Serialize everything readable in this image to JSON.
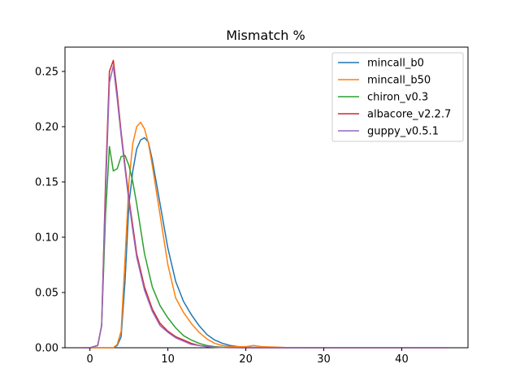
{
  "chart_data": {
    "type": "line",
    "title": "Mismatch %",
    "xlabel": "",
    "ylabel": "",
    "xlim": [
      -3.2,
      48.5
    ],
    "ylim": [
      0,
      0.272
    ],
    "xticks": [
      0,
      10,
      20,
      30,
      40
    ],
    "yticks": [
      0.0,
      0.05,
      0.1,
      0.15,
      0.2,
      0.25
    ],
    "ytick_labels": [
      "0.00",
      "0.05",
      "0.10",
      "0.15",
      "0.20",
      "0.25"
    ],
    "xtick_labels": [
      "0",
      "10",
      "20",
      "30",
      "40"
    ],
    "grid": false,
    "legend_position": "top-right",
    "series": [
      {
        "name": "mincall_b0",
        "color": "#1f77b4",
        "x": [
          -1.0,
          0,
          1,
          2,
          3,
          3.5,
          4,
          4.5,
          5,
          5.5,
          6,
          6.5,
          7,
          7.5,
          8,
          9,
          10,
          11,
          12,
          13,
          14,
          15,
          16,
          17,
          18,
          19,
          20,
          22,
          25,
          30,
          35,
          40,
          46
        ],
        "y": [
          0.0,
          0.0,
          0.0,
          0.0,
          0.0,
          0.002,
          0.01,
          0.06,
          0.13,
          0.16,
          0.18,
          0.188,
          0.19,
          0.186,
          0.17,
          0.13,
          0.09,
          0.06,
          0.042,
          0.03,
          0.02,
          0.012,
          0.007,
          0.004,
          0.002,
          0.001,
          0.0005,
          0.0002,
          0.0001,
          0,
          0,
          0,
          0
        ]
      },
      {
        "name": "mincall_b50",
        "color": "#ff7f0e",
        "x": [
          -1.0,
          0,
          1,
          2,
          3,
          3.5,
          4,
          4.5,
          5,
          5.5,
          6,
          6.5,
          7,
          7.5,
          8,
          9,
          10,
          11,
          12,
          13,
          14,
          15,
          16,
          17,
          18,
          19,
          20,
          21,
          22,
          25,
          30,
          35,
          40,
          46
        ],
        "y": [
          0.0,
          0.0,
          0.0,
          0.0,
          0.0,
          0.003,
          0.015,
          0.08,
          0.15,
          0.185,
          0.2,
          0.204,
          0.198,
          0.185,
          0.165,
          0.12,
          0.075,
          0.045,
          0.032,
          0.022,
          0.014,
          0.008,
          0.004,
          0.002,
          0.001,
          0.001,
          0.001,
          0.002,
          0.001,
          0.0003,
          0,
          0,
          0,
          0
        ]
      },
      {
        "name": "chiron_v0.3",
        "color": "#2ca02c",
        "x": [
          -1.0,
          0,
          1,
          1.5,
          2,
          2.5,
          3,
          3.5,
          4,
          4.5,
          5,
          5.5,
          6,
          7,
          8,
          9,
          10,
          11,
          12,
          13,
          14,
          15,
          16,
          17,
          18,
          20,
          25,
          30,
          40,
          46
        ],
        "y": [
          0.0,
          0.0,
          0.002,
          0.02,
          0.12,
          0.182,
          0.16,
          0.162,
          0.173,
          0.174,
          0.165,
          0.15,
          0.13,
          0.085,
          0.055,
          0.038,
          0.027,
          0.018,
          0.011,
          0.007,
          0.004,
          0.002,
          0.001,
          0.0005,
          0.0002,
          0,
          0,
          0,
          0,
          0
        ]
      },
      {
        "name": "albacore_v2.2.7",
        "color": "#d62728",
        "x": [
          -1.0,
          0,
          1,
          1.5,
          2,
          2.5,
          3,
          3.5,
          4,
          4.5,
          5,
          5.5,
          6,
          7,
          8,
          9,
          10,
          11,
          12,
          13,
          14,
          15,
          16,
          17,
          18,
          20,
          25,
          30,
          40,
          46
        ],
        "y": [
          0.0,
          0.0,
          0.002,
          0.02,
          0.15,
          0.25,
          0.26,
          0.23,
          0.195,
          0.165,
          0.135,
          0.11,
          0.085,
          0.055,
          0.035,
          0.022,
          0.015,
          0.01,
          0.007,
          0.004,
          0.002,
          0.001,
          0.0005,
          0.0002,
          0.0001,
          0,
          0,
          0,
          0,
          0
        ]
      },
      {
        "name": "guppy_v0.5.1",
        "color": "#9467bd",
        "x": [
          -1.0,
          0,
          1,
          1.5,
          2,
          2.5,
          3,
          3.5,
          4,
          4.5,
          5,
          5.5,
          6,
          7,
          8,
          9,
          10,
          11,
          12,
          13,
          14,
          15,
          16,
          17,
          18,
          20,
          25,
          30,
          40,
          46
        ],
        "y": [
          0.0,
          0.0,
          0.002,
          0.02,
          0.14,
          0.24,
          0.255,
          0.225,
          0.192,
          0.162,
          0.132,
          0.106,
          0.082,
          0.052,
          0.033,
          0.02,
          0.014,
          0.009,
          0.006,
          0.003,
          0.002,
          0.001,
          0.0005,
          0.0002,
          0.0001,
          0,
          0,
          0,
          0,
          0
        ]
      }
    ]
  }
}
